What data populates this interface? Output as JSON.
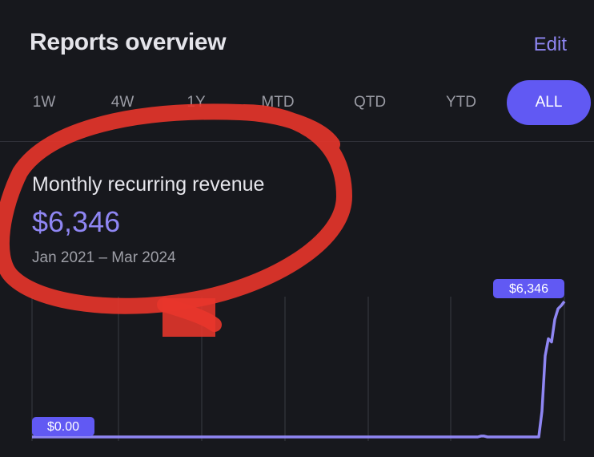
{
  "header": {
    "title": "Reports overview",
    "edit_label": "Edit"
  },
  "tabs": [
    {
      "label": "1W",
      "active": false
    },
    {
      "label": "4W",
      "active": false
    },
    {
      "label": "1Y",
      "active": false
    },
    {
      "label": "MTD",
      "active": false
    },
    {
      "label": "QTD",
      "active": false
    },
    {
      "label": "YTD",
      "active": false
    },
    {
      "label": "ALL",
      "active": true
    }
  ],
  "metric": {
    "title": "Monthly recurring revenue",
    "value": "$6,346",
    "range": "Jan 2021 – Mar 2024"
  },
  "colors": {
    "background": "#17181d",
    "accent": "#6159f3",
    "line": "#8f86f3",
    "annotation": "#e8352b"
  },
  "chart_data": {
    "type": "line",
    "x_start": "Jan 2021",
    "x_end": "Mar 2024",
    "start_label": "$0.00",
    "end_label": "$6,346",
    "ylim": [
      0,
      6346
    ],
    "grid": true,
    "series": [
      {
        "values": [
          0,
          0,
          0,
          0,
          0,
          0,
          0,
          0,
          0,
          0,
          0,
          0,
          0,
          0,
          0,
          0,
          0,
          0,
          0,
          0,
          0,
          0,
          0,
          0,
          0,
          0,
          0,
          0,
          0,
          0,
          0,
          0,
          0,
          0,
          0,
          0,
          0,
          0,
          0,
          0,
          0,
          0,
          0,
          0,
          0,
          0,
          0,
          0,
          0,
          0,
          0,
          0,
          0,
          0,
          0,
          0,
          0,
          0,
          0,
          0,
          0,
          0,
          0,
          0,
          0,
          0,
          0,
          0,
          0,
          0,
          0,
          0,
          0,
          0,
          0,
          0,
          0,
          0,
          0,
          0,
          0,
          0,
          0,
          0,
          0,
          0,
          0,
          0,
          0,
          0,
          0,
          0,
          0,
          0,
          0,
          0,
          0,
          0,
          0,
          0,
          0,
          0,
          0,
          0,
          0,
          0,
          0,
          0,
          0,
          0,
          0,
          0,
          0,
          0,
          0,
          0,
          0,
          0,
          0,
          0,
          0,
          0,
          0,
          0,
          0,
          0,
          0,
          0,
          0,
          0,
          0,
          0,
          0,
          0,
          0,
          0,
          0,
          0,
          0,
          0,
          40,
          40,
          0,
          0,
          0,
          0,
          0,
          0,
          0,
          0,
          0,
          0,
          0,
          0,
          0,
          0,
          0,
          0,
          0,
          1200,
          3800,
          4600,
          4450,
          5500,
          6000,
          6150,
          6346
        ]
      }
    ]
  }
}
